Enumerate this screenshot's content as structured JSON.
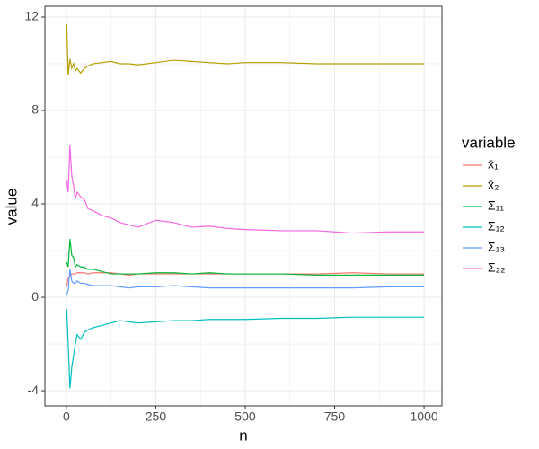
{
  "chart_data": {
    "type": "line",
    "x_label": "n",
    "y_label": "value",
    "legend_title": "variable",
    "xlim": [
      -60,
      1050
    ],
    "ylim": [
      -4.65,
      12.46
    ],
    "xticks": [
      0,
      250,
      500,
      750,
      1000
    ],
    "yticks": [
      -4,
      0,
      4,
      8,
      12
    ],
    "minor_xticks": [
      125,
      375,
      625,
      875
    ],
    "minor_yticks": [
      -2,
      2,
      6,
      10
    ],
    "grid": true,
    "legend_position": "right",
    "x": [
      1,
      5,
      10,
      15,
      20,
      25,
      30,
      40,
      50,
      60,
      75,
      100,
      125,
      150,
      175,
      200,
      250,
      300,
      350,
      400,
      450,
      500,
      600,
      700,
      800,
      900,
      1000
    ],
    "series": [
      {
        "name": "x̄₁",
        "color": "#F8766D",
        "values": [
          0.5,
          0.8,
          0.9,
          1.0,
          1.0,
          1.0,
          1.05,
          1.05,
          1.05,
          1.0,
          1.05,
          1.05,
          1.05,
          1.0,
          0.95,
          1.0,
          1.0,
          1.0,
          1.0,
          1.0,
          1.0,
          1.0,
          1.0,
          1.0,
          1.05,
          1.0,
          1.0
        ]
      },
      {
        "name": "x̄₂",
        "color": "#B79F00",
        "values": [
          11.7,
          9.5,
          10.2,
          9.8,
          10.0,
          9.7,
          9.8,
          9.6,
          9.8,
          9.9,
          10.0,
          10.05,
          10.1,
          10.0,
          10.0,
          9.95,
          10.05,
          10.15,
          10.1,
          10.05,
          10.0,
          10.05,
          10.05,
          10.0,
          10.0,
          10.0,
          10.0
        ]
      },
      {
        "name": "Σ₁₁",
        "color": "#00BA38",
        "values": [
          1.5,
          1.3,
          2.5,
          1.8,
          1.7,
          1.3,
          1.4,
          1.3,
          1.3,
          1.2,
          1.2,
          1.1,
          1.0,
          1.0,
          1.0,
          1.0,
          1.05,
          1.05,
          1.0,
          1.05,
          1.0,
          1.0,
          1.0,
          0.95,
          0.95,
          0.95,
          0.95
        ]
      },
      {
        "name": "Σ₁₂",
        "color": "#00BFC4",
        "values": [
          -0.5,
          -2.0,
          -3.9,
          -3.0,
          -2.5,
          -2.0,
          -1.6,
          -1.8,
          -1.5,
          -1.4,
          -1.3,
          -1.2,
          -1.1,
          -1.0,
          -1.05,
          -1.1,
          -1.05,
          -1.0,
          -1.0,
          -0.95,
          -0.95,
          -0.95,
          -0.9,
          -0.9,
          -0.85,
          -0.85,
          -0.85
        ]
      },
      {
        "name": "Σ₁₃",
        "color": "#619CFF",
        "values": [
          0.1,
          0.3,
          1.2,
          0.7,
          0.6,
          0.6,
          0.7,
          0.6,
          0.6,
          0.55,
          0.5,
          0.5,
          0.5,
          0.45,
          0.4,
          0.45,
          0.45,
          0.5,
          0.45,
          0.4,
          0.4,
          0.4,
          0.4,
          0.4,
          0.4,
          0.45,
          0.45
        ]
      },
      {
        "name": "Σ₂₂",
        "color": "#F564E3",
        "values": [
          5.0,
          4.5,
          6.5,
          5.2,
          4.8,
          4.2,
          4.5,
          4.3,
          4.2,
          3.8,
          3.7,
          3.5,
          3.4,
          3.2,
          3.1,
          3.0,
          3.3,
          3.2,
          3.0,
          3.05,
          2.95,
          2.9,
          2.85,
          2.85,
          2.75,
          2.8,
          2.8
        ]
      }
    ]
  }
}
